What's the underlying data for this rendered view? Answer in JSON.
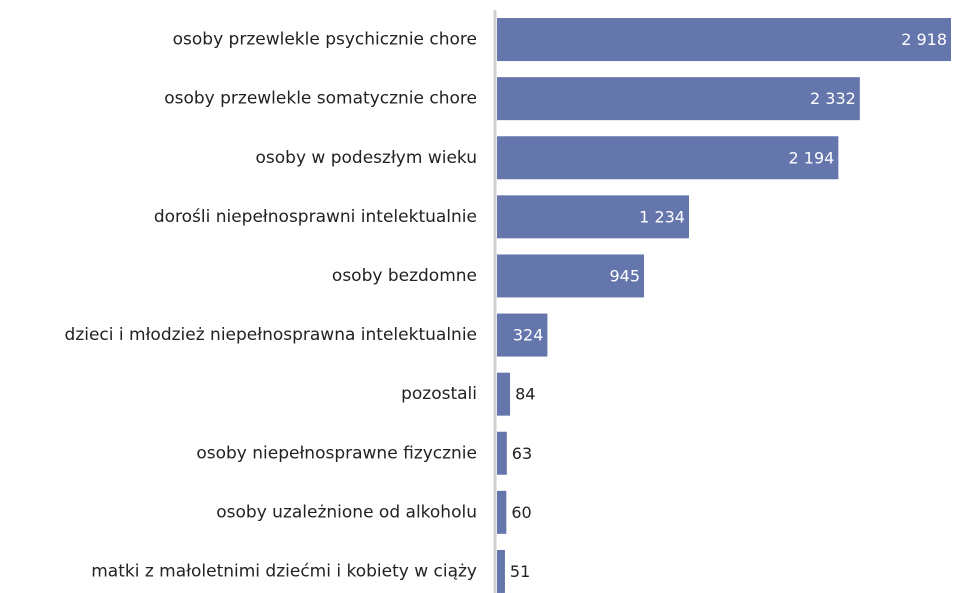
{
  "chart_data": {
    "type": "bar",
    "orientation": "horizontal",
    "categories": [
      "osoby przewlekle psychicznie chore",
      "osoby przewlekle somatycznie chore",
      "osoby w podeszłym wieku",
      "dorośli niepełnosprawni intelektualnie",
      "osoby bezdomne",
      "dzieci i młodzież niepełnosprawna intelektualnie",
      "pozostali",
      "osoby niepełnosprawne fizycznie",
      "osoby uzależnione od alkoholu",
      "matki z małoletnimi dziećmi i kobiety w ciąży"
    ],
    "values": [
      2918,
      2332,
      2194,
      1234,
      945,
      324,
      84,
      63,
      60,
      51
    ],
    "value_labels": [
      "2 918",
      "2 332",
      "2 194",
      "1 234",
      "945",
      "324",
      "84",
      "63",
      "60",
      "51"
    ],
    "color": "#6576ad"
  }
}
